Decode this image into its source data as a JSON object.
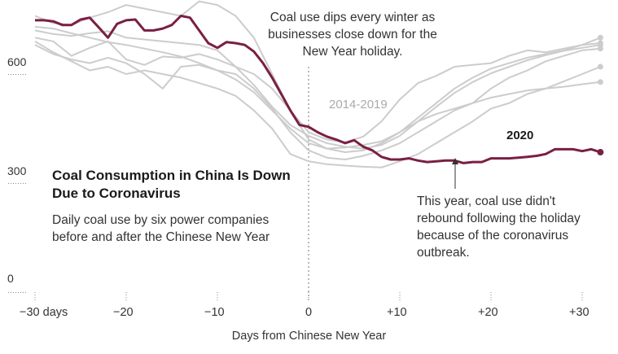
{
  "chart_data": {
    "type": "line",
    "title": "Coal Consumption in China Is Down Due to Coronavirus",
    "subtitle": "Daily coal use by six power companies before and after the Chinese New Year",
    "xlabel": "Days from Chinese New Year",
    "ylabel": "",
    "xlim": [
      -33,
      33
    ],
    "ylim": [
      0,
      780
    ],
    "xticks": [
      -30,
      -20,
      -10,
      0,
      10,
      20,
      30
    ],
    "xtick_labels": [
      "−30 days",
      "−20",
      "−10",
      "0",
      "+10",
      "+20",
      "+30"
    ],
    "yticks": [
      0,
      300,
      600
    ],
    "ytick_labels": [
      "0",
      "300",
      "600"
    ],
    "grid": false,
    "annotations": {
      "top": "Coal use dips every winter as businesses close down for the New Year holiday.",
      "bottom": "This year, coal use didn't rebound following the holiday because of the coronavirus outbreak.",
      "history_label": "2014-2019",
      "current_label": "2020"
    },
    "series": [
      {
        "name": "2020",
        "color": "#7a1f43",
        "x": [
          -30,
          -29,
          -28,
          -27,
          -26,
          -25,
          -24,
          -23,
          -22,
          -21,
          -20,
          -19,
          -18,
          -17,
          -16,
          -15,
          -14,
          -13,
          -12,
          -11,
          -10,
          -9,
          -8,
          -7,
          -6,
          -5,
          -4,
          -3,
          -2,
          -1,
          0,
          1,
          2,
          3,
          4,
          5,
          6,
          7,
          8,
          9,
          10,
          11,
          12,
          13,
          14,
          15,
          16,
          17,
          18,
          19,
          20,
          21,
          22,
          23,
          24,
          25,
          26,
          27,
          28,
          29,
          30,
          31,
          32
        ],
        "values": [
          748,
          748,
          745,
          735,
          735,
          750,
          755,
          728,
          700,
          738,
          748,
          750,
          720,
          720,
          725,
          735,
          760,
          755,
          720,
          685,
          672,
          688,
          685,
          680,
          662,
          630,
          590,
          545,
          500,
          460,
          455,
          440,
          428,
          420,
          410,
          418,
          400,
          390,
          372,
          365,
          365,
          368,
          362,
          358,
          360,
          362,
          362,
          355,
          358,
          358,
          368,
          368,
          368,
          370,
          372,
          375,
          380,
          393,
          393,
          393,
          388,
          393,
          385
        ]
      },
      {
        "name": "",
        "color": "#cccccc",
        "x": [
          -30,
          -28,
          -26,
          -24,
          -22,
          -20,
          -18,
          -16,
          -14,
          -12,
          -10,
          -8,
          -6,
          -4,
          -2,
          0,
          2,
          4,
          6,
          8,
          10,
          12,
          14,
          16,
          18,
          20,
          22,
          24,
          26,
          28,
          30,
          32
        ],
        "values": [
          730,
          725,
          712,
          700,
          688,
          680,
          670,
          660,
          648,
          630,
          610,
          585,
          550,
          500,
          450,
          410,
          395,
          398,
          405,
          415,
          440,
          480,
          520,
          560,
          590,
          615,
          630,
          645,
          655,
          665,
          680,
          700
        ]
      },
      {
        "name": "",
        "color": "#cccccc",
        "x": [
          -30,
          -28,
          -26,
          -24,
          -22,
          -20,
          -18,
          -16,
          -14,
          -12,
          -10,
          -8,
          -6,
          -4,
          -2,
          0,
          2,
          4,
          6,
          8,
          10,
          12,
          14,
          16,
          18,
          20,
          22,
          24,
          26,
          28,
          30,
          32
        ],
        "values": [
          720,
          710,
          705,
          712,
          718,
          700,
          695,
          690,
          685,
          680,
          665,
          620,
          570,
          510,
          460,
          430,
          410,
          400,
          395,
          405,
          430,
          470,
          510,
          548,
          578,
          602,
          620,
          638,
          652,
          664,
          672,
          680
        ]
      },
      {
        "name": "",
        "color": "#cccccc",
        "x": [
          -30,
          -28,
          -26,
          -24,
          -22,
          -20,
          -18,
          -16,
          -14,
          -12,
          -10,
          -8,
          -6,
          -4,
          -2,
          0,
          2,
          4,
          6,
          8,
          10,
          12,
          14,
          16,
          18,
          20,
          22,
          24,
          26,
          28,
          30,
          32
        ],
        "values": [
          680,
          655,
          640,
          630,
          645,
          630,
          600,
          560,
          620,
          625,
          610,
          600,
          560,
          505,
          440,
          390,
          370,
          365,
          375,
          390,
          410,
          440,
          470,
          500,
          520,
          560,
          590,
          610,
          635,
          650,
          665,
          670
        ]
      },
      {
        "name": "",
        "color": "#cccccc",
        "x": [
          -30,
          -28,
          -26,
          -24,
          -22,
          -20,
          -18,
          -16,
          -14,
          -12,
          -10,
          -8,
          -6,
          -4,
          -2,
          0,
          2,
          4,
          6,
          8,
          10,
          12,
          14,
          16,
          18,
          20,
          22,
          24,
          26,
          28,
          30,
          32
        ],
        "values": [
          700,
          690,
          650,
          672,
          690,
          640,
          625,
          648,
          645,
          655,
          640,
          620,
          600,
          560,
          500,
          440,
          420,
          412,
          428,
          470,
          530,
          575,
          595,
          620,
          625,
          630,
          650,
          665,
          660,
          670,
          680,
          685
        ]
      },
      {
        "name": "",
        "color": "#cccccc",
        "x": [
          -30,
          -28,
          -26,
          -24,
          -22,
          -20,
          -18,
          -16,
          -14,
          -12,
          -10,
          -8,
          -6,
          -4,
          -2,
          0,
          2,
          4,
          6,
          8,
          10,
          12,
          14,
          16,
          18,
          20,
          22,
          24,
          26,
          28,
          30,
          32
        ],
        "values": [
          690,
          660,
          635,
          610,
          620,
          600,
          610,
          600,
          590,
          575,
          560,
          540,
          500,
          450,
          380,
          360,
          352,
          348,
          345,
          343,
          360,
          380,
          410,
          440,
          470,
          505,
          520,
          545,
          560,
          580,
          600,
          620
        ]
      },
      {
        "name": "",
        "color": "#cccccc",
        "x": [
          -30,
          -28,
          -26,
          -24,
          -22,
          -20,
          -18,
          -16,
          -14,
          -12,
          -10,
          -8,
          -6,
          -4,
          -2,
          0,
          2,
          4,
          6,
          8,
          10,
          12,
          14,
          16,
          18,
          20,
          22,
          24,
          26,
          28,
          30,
          32
        ],
        "values": [
          760,
          740,
          735,
          755,
          770,
          790,
          780,
          770,
          760,
          800,
          790,
          760,
          700,
          600,
          500,
          420,
          395,
          385,
          390,
          410,
          440,
          470,
          490,
          505,
          520,
          535,
          545,
          555,
          560,
          565,
          572,
          578
        ]
      }
    ]
  }
}
